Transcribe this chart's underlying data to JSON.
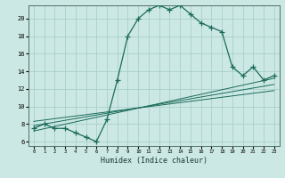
{
  "xlabel": "Humidex (Indice chaleur)",
  "bg_color": "#cce8e4",
  "grid_color": "#a8d0cc",
  "line_color": "#1a6b5a",
  "xlim": [
    -0.5,
    23.5
  ],
  "ylim": [
    5.5,
    21.5
  ],
  "xticks": [
    0,
    1,
    2,
    3,
    4,
    5,
    6,
    7,
    8,
    9,
    10,
    11,
    12,
    13,
    14,
    15,
    16,
    17,
    18,
    19,
    20,
    21,
    22,
    23
  ],
  "yticks": [
    6,
    8,
    10,
    12,
    14,
    16,
    18,
    20
  ],
  "main_line_x": [
    0,
    1,
    2,
    3,
    4,
    5,
    6,
    7,
    8,
    9,
    10,
    11,
    12,
    13,
    14,
    15,
    16,
    17,
    18,
    19,
    20,
    21,
    22,
    23
  ],
  "main_line_y": [
    7.5,
    8.0,
    7.5,
    7.5,
    7.0,
    6.5,
    6.0,
    8.5,
    13.0,
    18.0,
    20.0,
    21.0,
    21.5,
    21.0,
    21.5,
    20.5,
    19.5,
    19.0,
    18.5,
    14.5,
    13.5,
    14.5,
    13.0,
    13.5
  ],
  "reg_line1": [
    [
      0,
      23
    ],
    [
      7.2,
      13.2
    ]
  ],
  "reg_line2": [
    [
      0,
      23
    ],
    [
      7.8,
      12.5
    ]
  ],
  "reg_line3": [
    [
      0,
      23
    ],
    [
      8.3,
      11.8
    ]
  ]
}
